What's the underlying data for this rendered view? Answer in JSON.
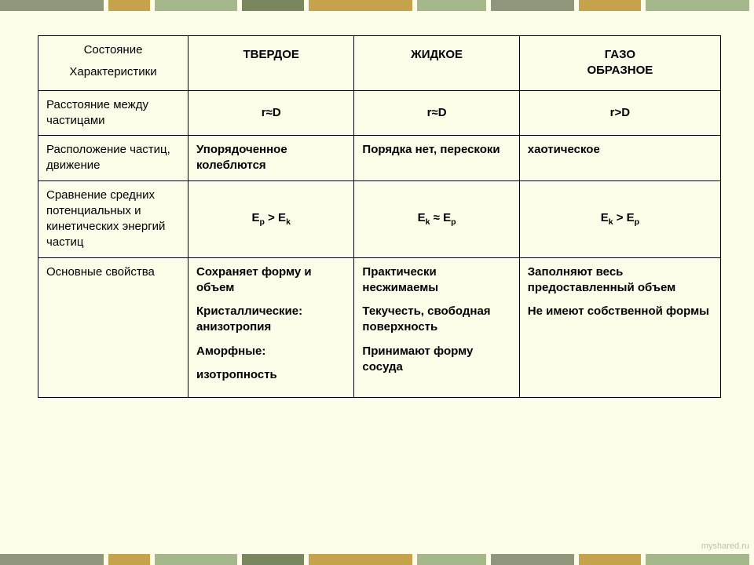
{
  "bars": {
    "colors": [
      "#8f977a",
      "#c6a24d",
      "#a4b88b",
      "#7a865e",
      "#c6a24d",
      "#a4b88b",
      "#8f977a",
      "#c6a24d",
      "#a4b88b"
    ],
    "widths": [
      150,
      60,
      120,
      90,
      150,
      100,
      120,
      90,
      150
    ]
  },
  "header": {
    "corner_line1": "Состояние",
    "corner_line2": "Характеристики",
    "col1": "ТВЕРДОЕ",
    "col2": "ЖИДКОЕ",
    "col3_line1": "ГАЗО",
    "col3_line2": "ОБРАЗНОЕ"
  },
  "rows": {
    "r1": {
      "label": "Расстояние между частицами",
      "c1": "r≈D",
      "c2": "r≈D",
      "c3": "r>D"
    },
    "r2": {
      "label": "Расположение частиц, движение",
      "c1": "Упорядоченное колеблются",
      "c2": "Порядка нет, перескоки",
      "c3": "хаотическое"
    },
    "r3": {
      "label": "Сравнение средних потенциальных и кинетических энергий частиц",
      "c1_html": "E<span class='sub'>p</span> &gt; E<span class='sub'>k</span>",
      "c2_html": "E<span class='sub'>k</span> ≈ E<span class='sub'>p</span>",
      "c3_html": "E<span class='sub'>k</span> &gt; E<span class='sub'>p</span>"
    },
    "r4": {
      "label": "Основные свойства",
      "c1_p1": "Сохраняет форму и объем",
      "c1_p2": "Кристаллические: анизотропия",
      "c1_p3": "Аморфные:",
      "c1_p4": "изотропность",
      "c2_p1": "Практически несжимаемы",
      "c2_p2": "Текучесть, свободная поверхность",
      "c2_p3": "Принимают форму сосуда",
      "c3_p1": "Заполняют весь предоставленный объем",
      "c3_p2": "Не имеют собственной формы"
    }
  },
  "watermark": "myshared.ru"
}
